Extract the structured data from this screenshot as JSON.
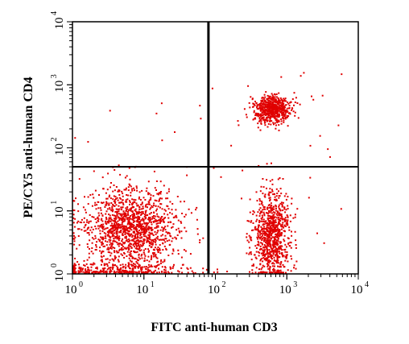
{
  "chart_data": {
    "type": "scatter",
    "xlabel": "FITC anti-human CD3",
    "ylabel": "PE/CY5 anti-human CD4",
    "x_scale": "log",
    "y_scale": "log",
    "xlim": [
      1,
      10000
    ],
    "ylim": [
      1,
      10000
    ],
    "x_ticks": [
      {
        "base": "10",
        "exp": "0",
        "value": 1
      },
      {
        "base": "10",
        "exp": "1",
        "value": 10
      },
      {
        "base": "10",
        "exp": "2",
        "value": 100
      },
      {
        "base": "10",
        "exp": "3",
        "value": 1000
      },
      {
        "base": "10",
        "exp": "4",
        "value": 10000
      }
    ],
    "y_ticks": [
      {
        "base": "10",
        "exp": "0",
        "value": 1
      },
      {
        "base": "10",
        "exp": "1",
        "value": 10
      },
      {
        "base": "10",
        "exp": "2",
        "value": 100
      },
      {
        "base": "10",
        "exp": "3",
        "value": 1000
      },
      {
        "base": "10",
        "exp": "4",
        "value": 10000
      }
    ],
    "gates": {
      "x": 80,
      "y": 50
    },
    "point_color": "#e00000",
    "grid": false,
    "populations": [
      {
        "center": [
          6,
          5
        ],
        "spread": [
          0.32,
          0.32
        ],
        "count": 1400
      },
      {
        "center": [
          600,
          400
        ],
        "spread": [
          0.13,
          0.11
        ],
        "count": 600
      },
      {
        "center": [
          600,
          4
        ],
        "spread": [
          0.13,
          0.36
        ],
        "count": 900
      },
      {
        "center": [
          4,
          1.1
        ],
        "spread": [
          0.6,
          0.05
        ],
        "count": 300
      }
    ]
  }
}
